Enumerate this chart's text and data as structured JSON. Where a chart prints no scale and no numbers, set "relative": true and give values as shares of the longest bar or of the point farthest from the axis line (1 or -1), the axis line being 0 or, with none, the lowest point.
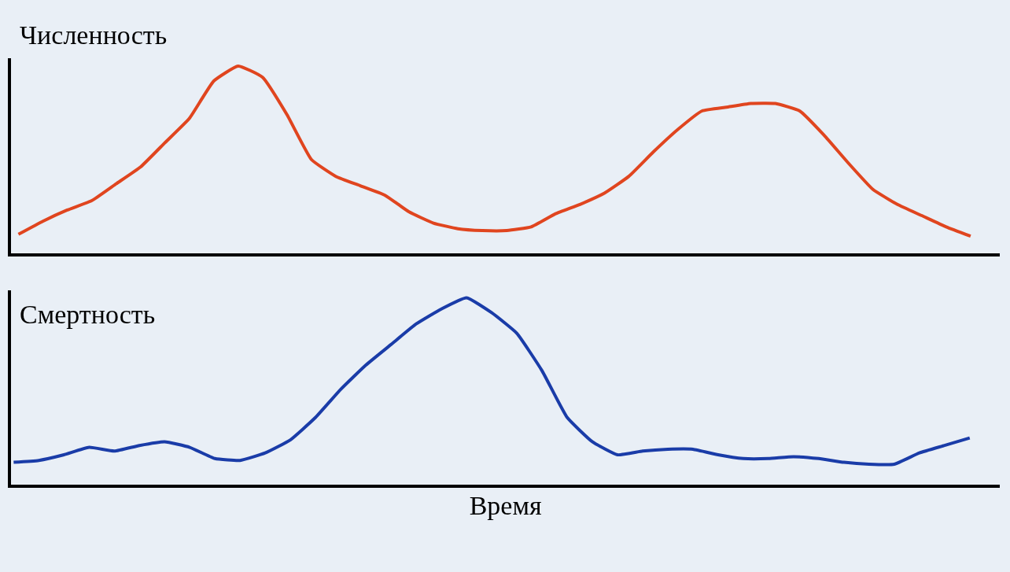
{
  "chart_data": [
    {
      "type": "line",
      "title": "Численность",
      "relative": true,
      "grid": false,
      "marker": "none",
      "line_style": "solid",
      "tick_labels": false,
      "categories": [
        null,
        null,
        null,
        null,
        null,
        null,
        null,
        null,
        null,
        null,
        null,
        null,
        null,
        null,
        null,
        null,
        null,
        null,
        null,
        null,
        null,
        null,
        null,
        null,
        null,
        null,
        null,
        null,
        null,
        null,
        null,
        null,
        null,
        null,
        null,
        null,
        null,
        null,
        null,
        null
      ],
      "series": [
        {
          "color": "#e0451f",
          "values": [
            0.1,
            0.17,
            0.23,
            0.28,
            0.37,
            0.46,
            0.59,
            0.72,
            0.92,
            1.0,
            0.94,
            0.74,
            0.5,
            0.41,
            0.36,
            0.31,
            0.22,
            0.16,
            0.13,
            0.12,
            0.12,
            0.14,
            0.21,
            0.26,
            0.32,
            0.41,
            0.54,
            0.66,
            0.76,
            0.78,
            0.8,
            0.8,
            0.76,
            0.63,
            0.48,
            0.34,
            0.26,
            0.2,
            0.14,
            0.09
          ]
        }
      ]
    },
    {
      "type": "line",
      "title": "Смертность",
      "xlabel": "Время",
      "relative": true,
      "grid": false,
      "marker": "none",
      "line_style": "solid",
      "tick_labels": false,
      "categories": [
        null,
        null,
        null,
        null,
        null,
        null,
        null,
        null,
        null,
        null,
        null,
        null,
        null,
        null,
        null,
        null,
        null,
        null,
        null,
        null,
        null,
        null,
        null,
        null,
        null,
        null,
        null,
        null,
        null,
        null,
        null,
        null,
        null,
        null,
        null,
        null,
        null,
        null,
        null
      ],
      "series": [
        {
          "color": "#1a3ca8",
          "values": [
            0.12,
            0.13,
            0.16,
            0.2,
            0.18,
            0.21,
            0.23,
            0.2,
            0.14,
            0.13,
            0.17,
            0.24,
            0.36,
            0.51,
            0.64,
            0.75,
            0.86,
            0.94,
            1.0,
            0.92,
            0.81,
            0.61,
            0.36,
            0.23,
            0.16,
            0.18,
            0.19,
            0.19,
            0.16,
            0.14,
            0.14,
            0.15,
            0.14,
            0.12,
            0.11,
            0.11,
            0.17,
            0.21,
            0.25
          ]
        }
      ]
    }
  ]
}
